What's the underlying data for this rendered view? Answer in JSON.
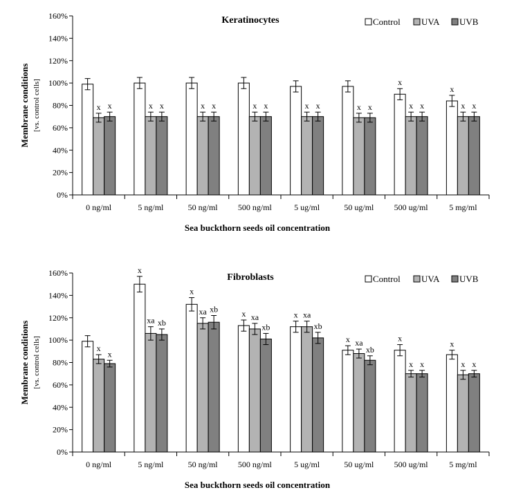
{
  "chart_data": [
    {
      "type": "bar",
      "title": "Keratinocytes",
      "xlabel": "Sea buckthorn  seeds oil concentration",
      "ylabel": "Membrane conditions",
      "ylabel_sub": "[vs. control cells]",
      "ylim": [
        0,
        160
      ],
      "yticks": [
        "0%",
        "20%",
        "40%",
        "60%",
        "80%",
        "100%",
        "120%",
        "140%",
        "160%"
      ],
      "legend_position": "top-right",
      "categories": [
        "0 ng/ml",
        "5 ng/ml",
        "50 ng/ml",
        "500 ng/ml",
        "5 ug/ml",
        "50 ug/ml",
        "500 ug/ml",
        "5 mg/ml"
      ],
      "series": [
        {
          "name": "Control",
          "color": "#ffffff",
          "values": [
            99,
            100,
            100,
            100,
            97,
            97,
            90,
            84
          ],
          "errors": [
            5,
            5,
            5,
            5,
            5,
            5,
            5,
            5
          ],
          "labels": [
            "",
            "",
            "",
            "",
            "",
            "",
            "x",
            "x"
          ]
        },
        {
          "name": "UVA",
          "color": "#b3b3b3",
          "values": [
            69,
            70,
            70,
            70,
            70,
            69,
            70,
            70
          ],
          "errors": [
            4,
            4,
            4,
            4,
            4,
            4,
            4,
            4
          ],
          "labels": [
            "x",
            "x",
            "x",
            "x",
            "x",
            "x",
            "x",
            "x"
          ]
        },
        {
          "name": "UVB",
          "color": "#808080",
          "values": [
            70,
            70,
            70,
            70,
            70,
            69,
            70,
            70
          ],
          "errors": [
            4,
            4,
            4,
            4,
            4,
            4,
            4,
            4
          ],
          "labels": [
            "x",
            "x",
            "x",
            "x",
            "x",
            "x",
            "x",
            "x"
          ]
        }
      ]
    },
    {
      "type": "bar",
      "title": "Fibroblasts",
      "xlabel": "Sea buckthorn  seeds oil concentration",
      "ylabel": "Membrane conditions",
      "ylabel_sub": "[vs. control cells]",
      "ylim": [
        0,
        160
      ],
      "yticks": [
        "0%",
        "20%",
        "40%",
        "60%",
        "80%",
        "100%",
        "120%",
        "140%",
        "160%"
      ],
      "legend_position": "top-right",
      "categories": [
        "0 ng/ml",
        "5 ng/ml",
        "50 ng/ml",
        "500 ng/ml",
        "5 ug/ml",
        "50 ug/ml",
        "500 ug/ml",
        "5 mg/ml"
      ],
      "series": [
        {
          "name": "Control",
          "color": "#ffffff",
          "values": [
            99,
            150,
            132,
            113,
            112,
            91,
            91,
            87
          ],
          "errors": [
            5,
            7,
            6,
            5,
            5,
            4,
            5,
            4
          ],
          "labels": [
            "",
            "x",
            "x",
            "x",
            "x",
            "x",
            "x",
            "x"
          ]
        },
        {
          "name": "UVA",
          "color": "#b3b3b3",
          "values": [
            83,
            106,
            115,
            110,
            112,
            88,
            70,
            69
          ],
          "errors": [
            4,
            6,
            5,
            5,
            5,
            4,
            3,
            4
          ],
          "labels": [
            "x",
            "xa",
            "xa",
            "xa",
            "xa",
            "xa",
            "x",
            "x"
          ]
        },
        {
          "name": "UVB",
          "color": "#808080",
          "values": [
            79,
            105,
            116,
            101,
            102,
            82,
            70,
            70
          ],
          "errors": [
            3,
            5,
            6,
            5,
            5,
            4,
            3,
            3
          ],
          "labels": [
            "x",
            "xb",
            "xb",
            "xb",
            "xb",
            "xb",
            "x",
            "x"
          ]
        }
      ]
    }
  ]
}
